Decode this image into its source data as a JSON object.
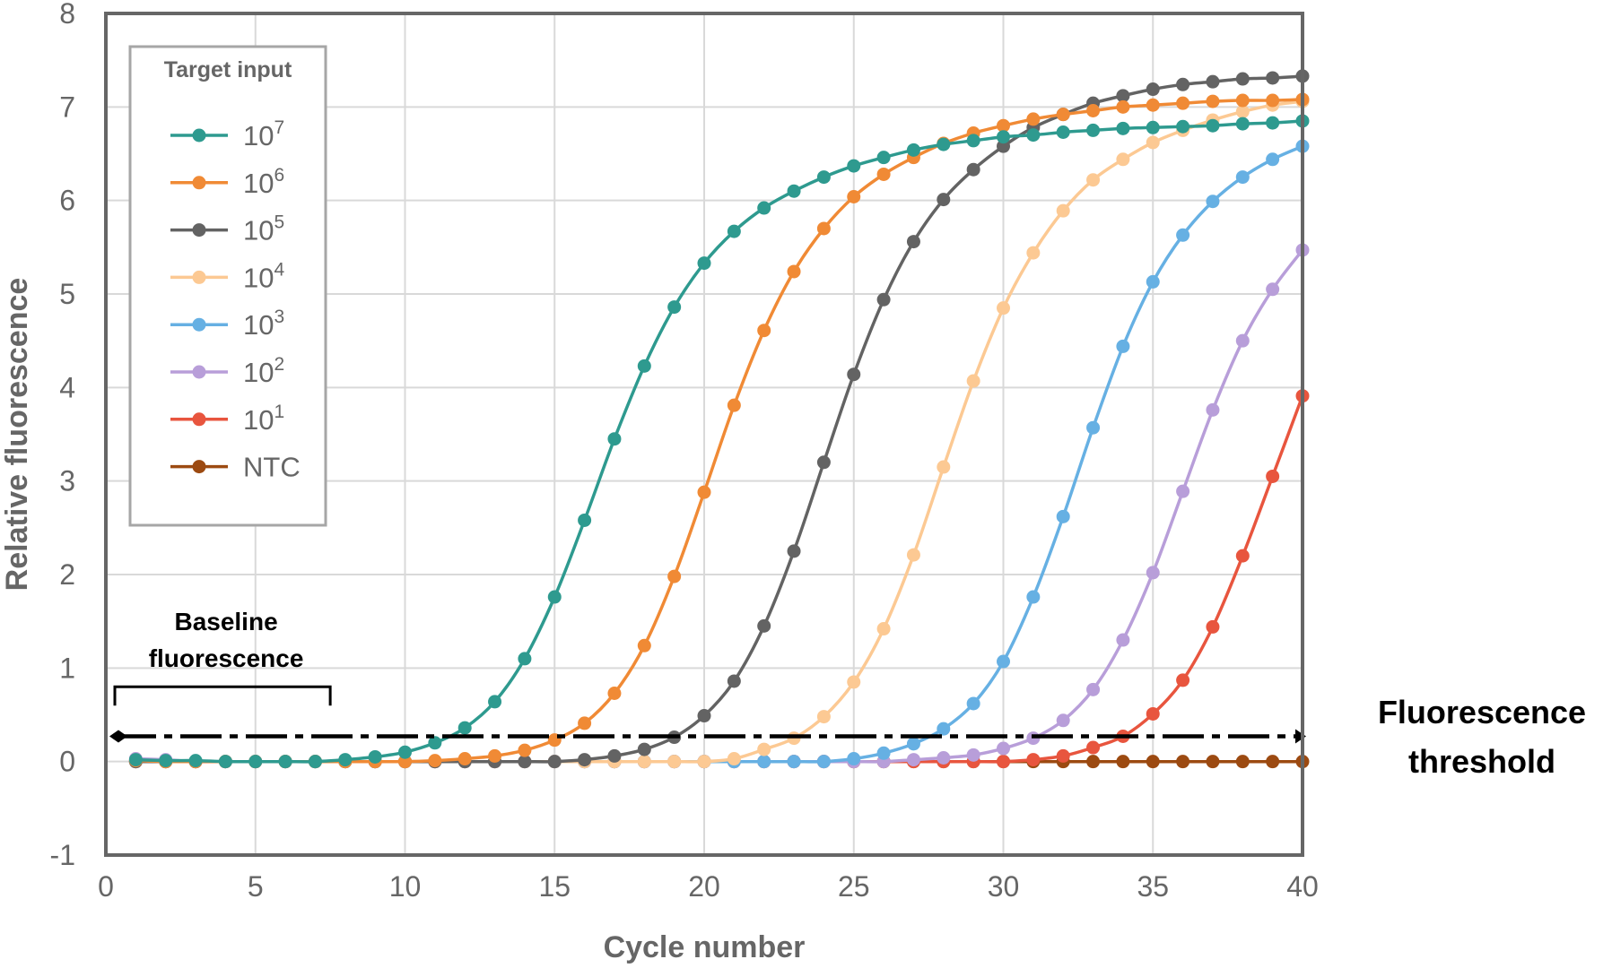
{
  "chart_data": {
    "type": "line",
    "xlabel": "Cycle number",
    "ylabel": "Relative fluorescence",
    "xlim": [
      0,
      40
    ],
    "ylim": [
      -1,
      8
    ],
    "xticks": [
      0,
      5,
      10,
      15,
      20,
      25,
      30,
      35,
      40
    ],
    "yticks": [
      -1,
      0,
      1,
      2,
      3,
      4,
      5,
      6,
      7,
      8
    ],
    "grid": true,
    "legend": {
      "title": "Target input",
      "placement": "top-left"
    },
    "x": [
      1,
      2,
      3,
      4,
      5,
      6,
      7,
      8,
      9,
      10,
      11,
      12,
      13,
      14,
      15,
      16,
      17,
      18,
      19,
      20,
      21,
      22,
      23,
      24,
      25,
      26,
      27,
      28,
      29,
      30,
      31,
      32,
      33,
      34,
      35,
      36,
      37,
      38,
      39,
      40
    ],
    "series": [
      {
        "name": "10",
        "exp": "7",
        "color": "#2e9a8f",
        "values": [
          0.02,
          0.01,
          0.01,
          0.0,
          0.0,
          0.0,
          0.0,
          0.02,
          0.05,
          0.1,
          0.2,
          0.36,
          0.64,
          1.1,
          1.76,
          2.58,
          3.45,
          4.23,
          4.86,
          5.33,
          5.67,
          5.92,
          6.1,
          6.25,
          6.37,
          6.46,
          6.54,
          6.6,
          6.64,
          6.68,
          6.7,
          6.73,
          6.75,
          6.77,
          6.78,
          6.79,
          6.8,
          6.82,
          6.83,
          6.85
        ]
      },
      {
        "name": "10",
        "exp": "6",
        "color": "#f08a35",
        "values": [
          0.01,
          0.0,
          0.0,
          0.0,
          0.0,
          0.0,
          0.0,
          0.0,
          0.0,
          0.0,
          0.01,
          0.03,
          0.06,
          0.12,
          0.23,
          0.41,
          0.73,
          1.24,
          1.98,
          2.88,
          3.81,
          4.61,
          5.24,
          5.7,
          6.04,
          6.28,
          6.46,
          6.61,
          6.72,
          6.8,
          6.87,
          6.92,
          6.96,
          7.0,
          7.02,
          7.04,
          7.06,
          7.07,
          7.07,
          7.08
        ]
      },
      {
        "name": "10",
        "exp": "5",
        "color": "#636363",
        "values": [
          0.0,
          0.0,
          0.0,
          0.0,
          0.0,
          0.0,
          0.0,
          0.0,
          0.0,
          0.0,
          0.0,
          0.0,
          0.0,
          0.0,
          0.0,
          0.02,
          0.06,
          0.13,
          0.26,
          0.49,
          0.86,
          1.45,
          2.25,
          3.2,
          4.14,
          4.94,
          5.56,
          6.01,
          6.33,
          6.58,
          6.78,
          6.92,
          7.04,
          7.12,
          7.19,
          7.24,
          7.27,
          7.3,
          7.31,
          7.33
        ]
      },
      {
        "name": "10",
        "exp": "4",
        "color": "#fcc993",
        "values": [
          0.0,
          0.0,
          0.0,
          0.0,
          0.0,
          0.0,
          0.0,
          0.0,
          0.0,
          0.0,
          0.0,
          0.0,
          0.0,
          0.0,
          0.0,
          0.0,
          0.0,
          0.0,
          0.0,
          0.0,
          0.03,
          0.13,
          0.25,
          0.48,
          0.85,
          1.42,
          2.21,
          3.15,
          4.07,
          4.85,
          5.44,
          5.89,
          6.22,
          6.44,
          6.62,
          6.75,
          6.86,
          6.95,
          7.02,
          7.06
        ]
      },
      {
        "name": "10",
        "exp": "3",
        "color": "#66b0e3",
        "values": [
          0.0,
          0.0,
          0.0,
          0.0,
          0.0,
          0.0,
          0.0,
          0.0,
          0.0,
          0.0,
          0.0,
          0.0,
          0.0,
          0.0,
          0.0,
          0.0,
          0.0,
          0.0,
          0.0,
          0.0,
          0.0,
          0.0,
          0.0,
          0.0,
          0.03,
          0.09,
          0.19,
          0.35,
          0.62,
          1.07,
          1.76,
          2.62,
          3.57,
          4.44,
          5.13,
          5.63,
          5.99,
          6.25,
          6.44,
          6.58
        ]
      },
      {
        "name": "10",
        "exp": "2",
        "color": "#b89ed9",
        "values": [
          0.03,
          0.02,
          0.0,
          0.0,
          0.0,
          0.0,
          0.0,
          0.0,
          0.0,
          0.0,
          0.0,
          0.0,
          0.0,
          0.0,
          0.0,
          0.0,
          0.0,
          0.0,
          0.0,
          0.0,
          0.0,
          0.0,
          0.0,
          0.0,
          0.0,
          0.0,
          0.02,
          0.04,
          0.07,
          0.14,
          0.25,
          0.44,
          0.77,
          1.3,
          2.02,
          2.89,
          3.76,
          4.5,
          5.05,
          5.47
        ]
      },
      {
        "name": "10",
        "exp": "1",
        "color": "#e8553e",
        "values": [
          0.0,
          0.0,
          0.0,
          0.0,
          0.0,
          0.0,
          0.0,
          0.0,
          0.0,
          0.0,
          0.0,
          0.0,
          0.0,
          0.0,
          0.0,
          0.0,
          0.0,
          0.0,
          0.0,
          0.0,
          0.0,
          0.0,
          0.0,
          0.0,
          0.0,
          0.0,
          0.0,
          0.0,
          0.0,
          0.0,
          0.02,
          0.06,
          0.15,
          0.27,
          0.51,
          0.87,
          1.44,
          2.2,
          3.05,
          3.91
        ]
      },
      {
        "name": "NTC",
        "exp": "",
        "color": "#9c4a11",
        "values": [
          0.0,
          0.0,
          0.0,
          0.0,
          0.0,
          0.0,
          0.0,
          0.0,
          0.0,
          0.0,
          0.0,
          0.0,
          0.0,
          0.0,
          0.0,
          0.0,
          0.0,
          0.0,
          0.0,
          0.0,
          0.0,
          0.0,
          0.0,
          0.0,
          0.0,
          0.0,
          0.0,
          0.0,
          0.0,
          0.0,
          0.0,
          0.0,
          0.0,
          0.0,
          0.0,
          0.0,
          0.0,
          0.0,
          0.0,
          0.0
        ]
      }
    ],
    "annotations": {
      "baseline": {
        "line1": "Baseline",
        "line2": "fluorescence",
        "x_from": 0.3,
        "x_to": 7.5,
        "y": 0.8
      },
      "threshold": {
        "line1": "Fluorescence",
        "line2": "threshold",
        "value": 0.27,
        "x_from": 0.3,
        "x_to": 40
      }
    }
  }
}
